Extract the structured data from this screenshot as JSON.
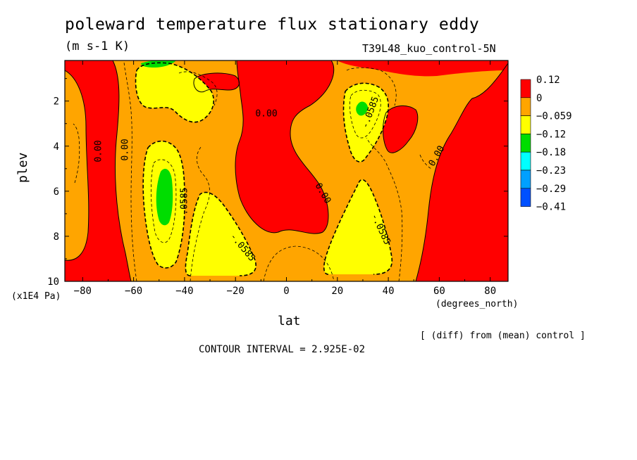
{
  "chart_data": {
    "type": "contour",
    "title": "poleward temperature flux stationary eddy",
    "units": "(m s-1 K)",
    "run_label": "T39L48_kuo_control-5N",
    "xlabel": "lat",
    "xunits": "(degrees_north)",
    "ylabel": "plev",
    "yunits": "(x1E4 Pa)",
    "xlim": [
      -87,
      87
    ],
    "ylim": [
      10,
      0.2
    ],
    "xticks": [
      "-80",
      "-60",
      "-40",
      "-20",
      "0",
      "20",
      "40",
      "60",
      "80"
    ],
    "yticks": [
      "2",
      "4",
      "6",
      "8",
      "10"
    ],
    "legend": {
      "placement": "right",
      "labels": [
        "0.12",
        "0",
        "−0.059",
        "−0.12",
        "−0.18",
        "−0.23",
        "−0.29",
        "−0.41"
      ],
      "colors": [
        "#ff0000",
        "#ffa500",
        "#ffff00",
        "#00dd00",
        "#00ffff",
        "#00a0ff",
        "#0050ff"
      ]
    },
    "contour_labels": [
      "0.00",
      "0.00",
      "0.00",
      "0.00",
      "0.00",
      "-.0585",
      "-.0585",
      "-.0585",
      "-.0585"
    ],
    "note": "[ (diff) from (mean) control ]",
    "contour_interval": "CONTOUR INTERVAL = 2.925E-02"
  }
}
